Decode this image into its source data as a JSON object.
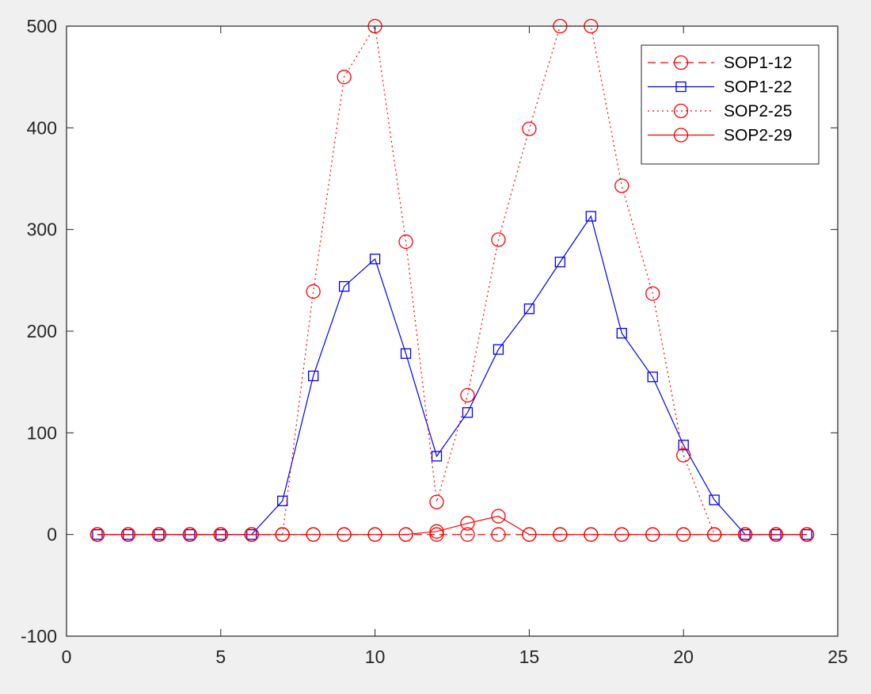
{
  "chart_data": {
    "type": "line",
    "title": "",
    "xlabel": "",
    "ylabel": "",
    "xlim": [
      0,
      25
    ],
    "ylim": [
      -100,
      500
    ],
    "xticks": [
      0,
      5,
      10,
      15,
      20,
      25
    ],
    "yticks": [
      -100,
      0,
      100,
      200,
      300,
      400,
      500
    ],
    "grid": false,
    "legend_position": "top-right",
    "x": [
      1,
      2,
      3,
      4,
      5,
      6,
      7,
      8,
      9,
      10,
      11,
      12,
      13,
      14,
      15,
      16,
      17,
      18,
      19,
      20,
      21,
      22,
      23,
      24
    ],
    "series": [
      {
        "name": "SOP1-12",
        "color": "#ff0000",
        "line_style": "dashed",
        "marker": "circle",
        "values": [
          0,
          0,
          0,
          0,
          0,
          0,
          0,
          0,
          0,
          0,
          0,
          0,
          0,
          0,
          0,
          0,
          0,
          0,
          0,
          0,
          0,
          0,
          0,
          0
        ]
      },
      {
        "name": "SOP1-22",
        "color": "#0000ff",
        "line_style": "solid",
        "marker": "square",
        "values": [
          0,
          0,
          0,
          0,
          0,
          0,
          33,
          156,
          244,
          271,
          178,
          77,
          120,
          182,
          222,
          268,
          313,
          198,
          155,
          88,
          34,
          0,
          0,
          0
        ]
      },
      {
        "name": "SOP2-25",
        "color": "#ff0000",
        "line_style": "dotted",
        "marker": "circle",
        "values": [
          0,
          0,
          0,
          0,
          0,
          0,
          0,
          239,
          450,
          500,
          288,
          32,
          137,
          290,
          399,
          500,
          500,
          343,
          237,
          78,
          0,
          0,
          0,
          0
        ]
      },
      {
        "name": "SOP2-29",
        "color": "#ff0000",
        "line_style": "solid",
        "marker": "circle",
        "values": [
          0,
          0,
          0,
          0,
          0,
          0,
          0,
          0,
          0,
          0,
          0,
          3,
          11,
          18,
          0,
          0,
          0,
          0,
          0,
          0,
          0,
          0,
          0,
          0
        ]
      }
    ]
  }
}
